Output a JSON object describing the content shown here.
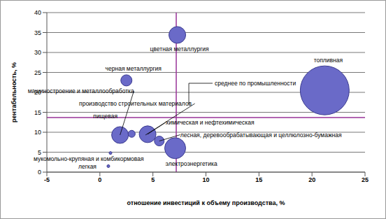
{
  "chart_data": {
    "type": "bubble",
    "x_label": "отношение инвестиций к объему производства, %",
    "y_label": "рентабельность, %",
    "xlim": [
      -5,
      25
    ],
    "xticks": [
      -5,
      0,
      5,
      10,
      15,
      20,
      25
    ],
    "ylim": [
      0,
      40
    ],
    "yticks": [
      0,
      5,
      10,
      15,
      20,
      25,
      30,
      35,
      40
    ],
    "grid": true,
    "color": "#6a6ac8",
    "labels": [
      "цветная металлургия",
      "топливная",
      "черная металлургия",
      "машиностроение и металлообработка",
      "производство строительных материалов",
      "пищевая",
      "химическая и нефтехимическая",
      "лесная, деревообрабатывающая и целлюлозно-бумажная",
      "электроэнергетика",
      "мукомольно-крупяная и комбикормовая",
      "легкая"
    ],
    "x": [
      7.3,
      21.2,
      2.5,
      1.9,
      4.3,
      3.0,
      4.5,
      5.6,
      7.1,
      1.0,
      0.8
    ],
    "y": [
      34.4,
      20.5,
      23.0,
      9.3,
      9.3,
      9.6,
      9.5,
      7.8,
      6.0,
      4.8,
      1.5
    ],
    "sizes": [
      144,
      1225,
      64,
      144,
      36,
      25,
      144,
      49,
      225,
      4,
      4
    ],
    "reference_lines": {
      "label": "среднее по промышленности",
      "x": 7.2,
      "y": 13.7,
      "color": "#993399"
    }
  }
}
